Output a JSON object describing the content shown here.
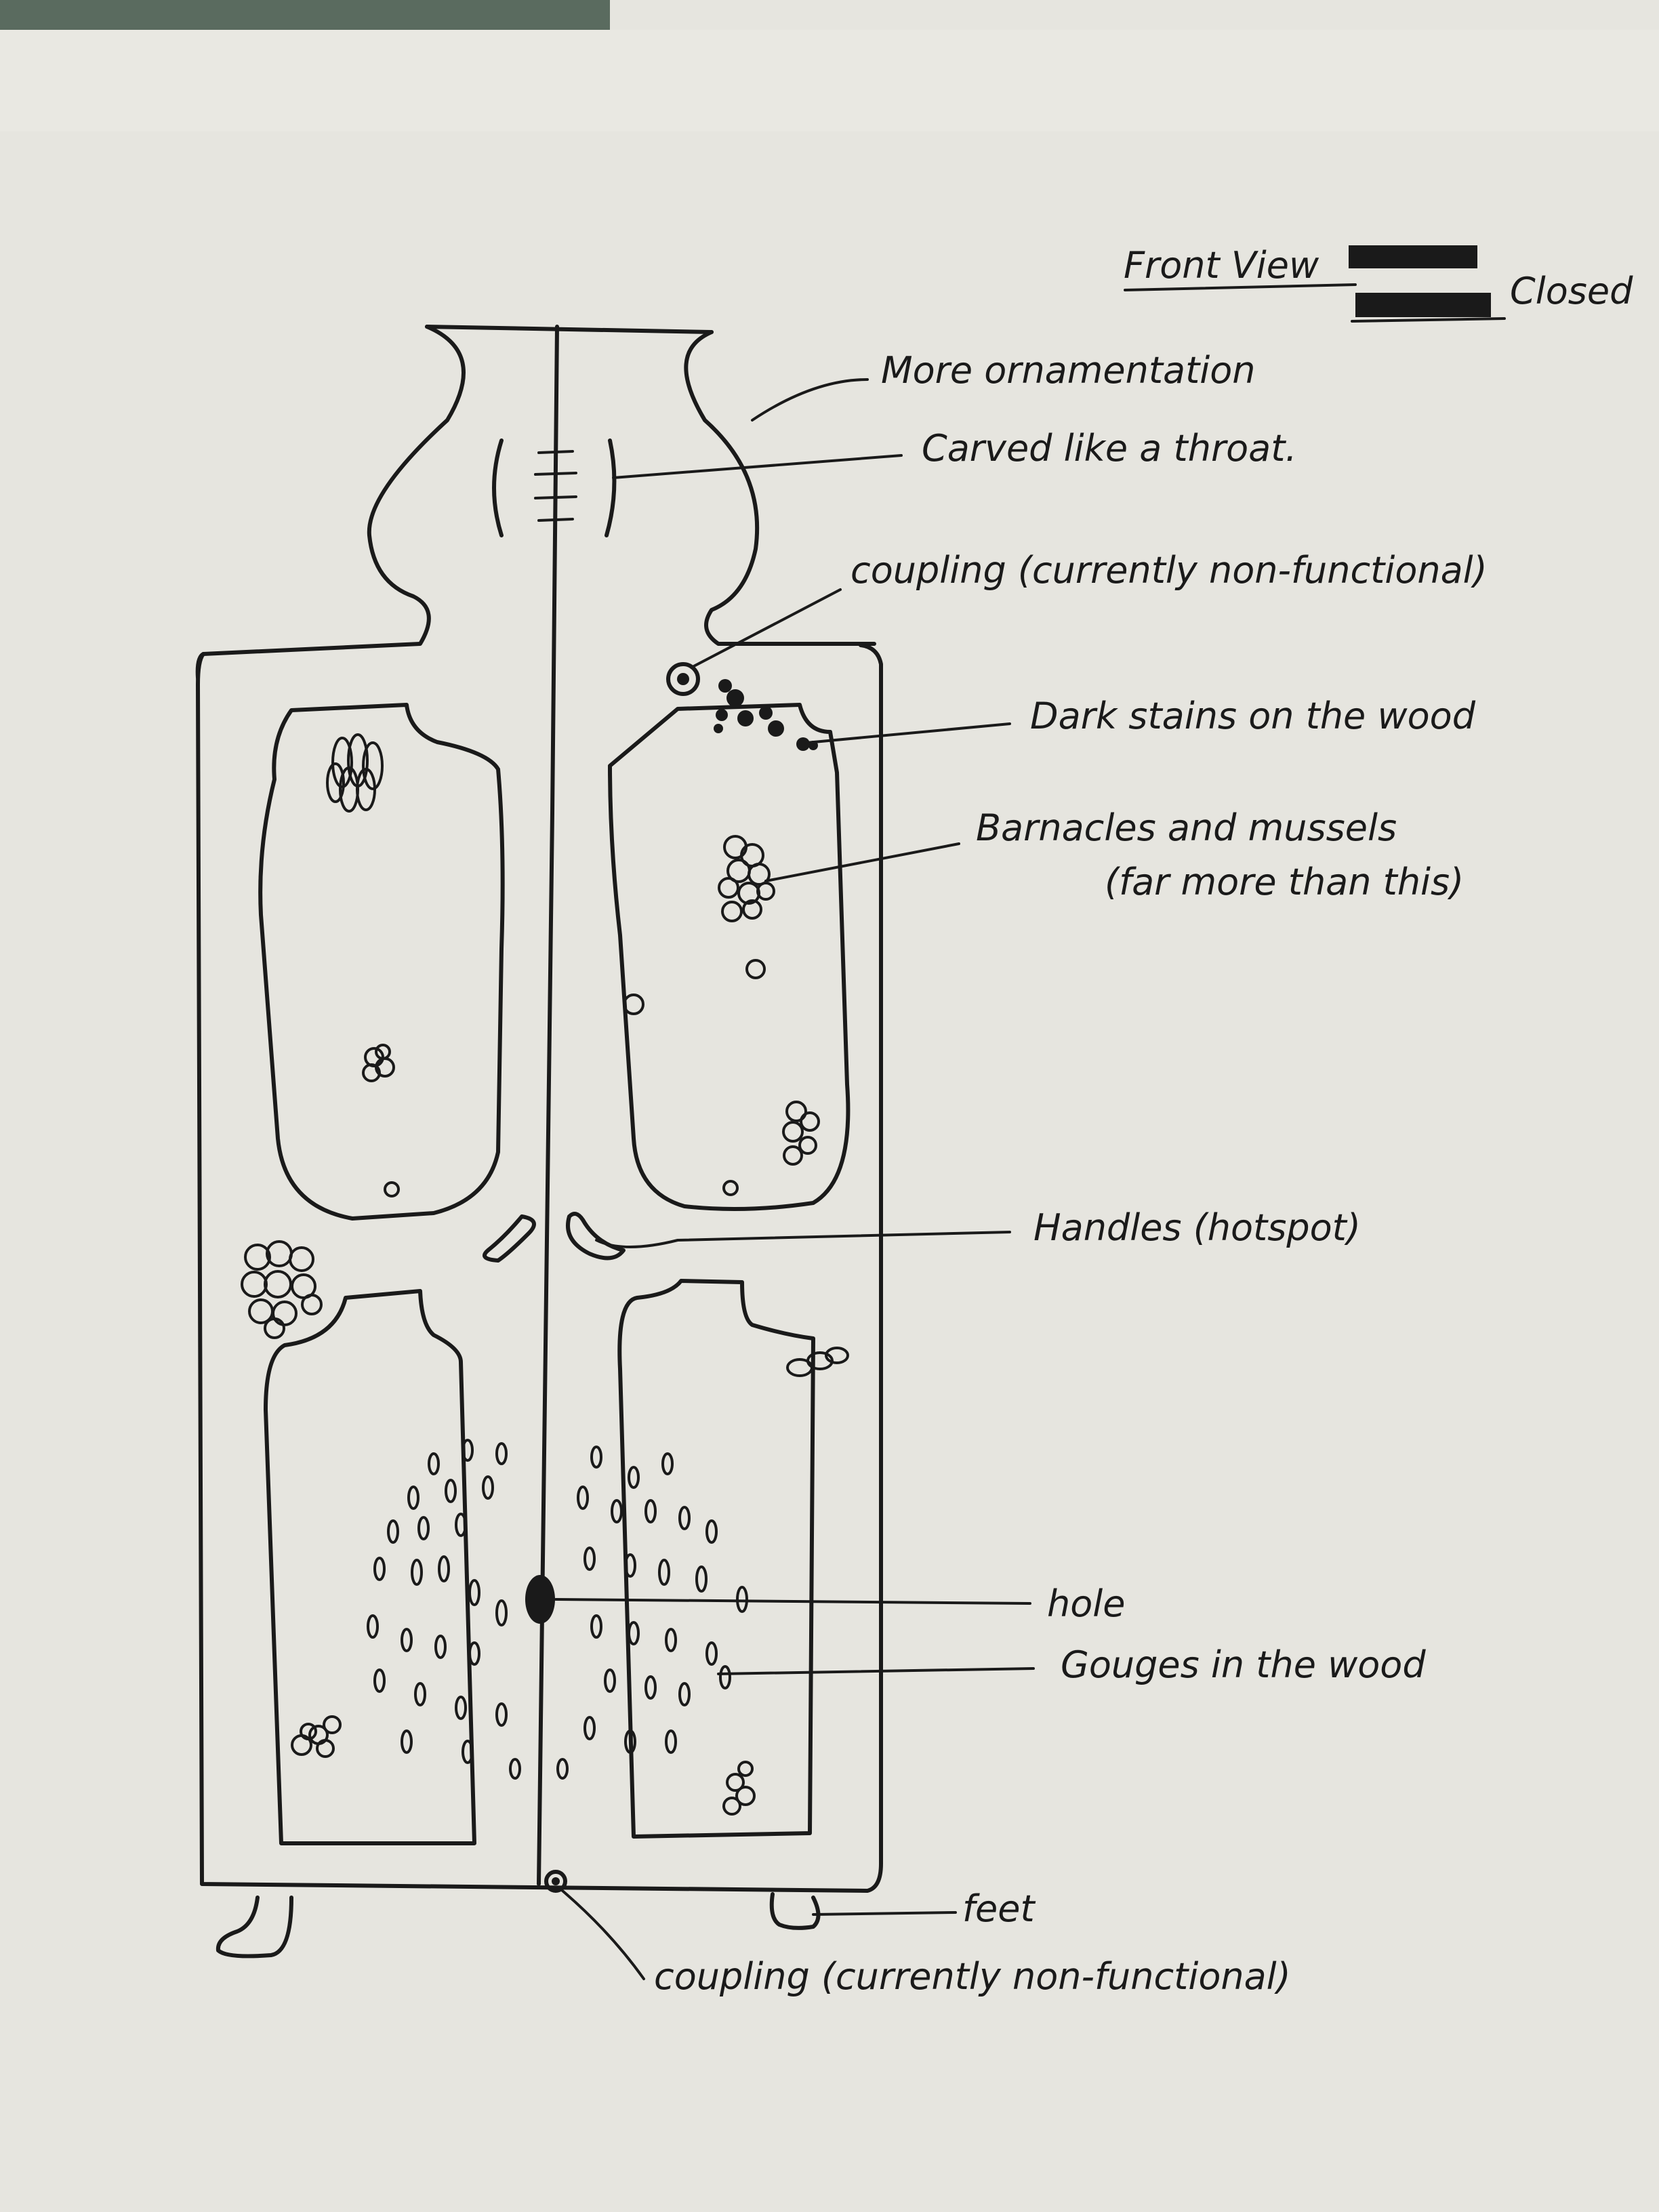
{
  "title": "Front View",
  "state": "Closed",
  "annotations": {
    "ornamentation": "More ornamentation",
    "throat": "Carved like a throat.",
    "coupling_top": "coupling (currently non-functional)",
    "dark_stains": "Dark stains on the wood",
    "barnacles": "Barnacles and mussels",
    "barnacles_note": "(far more than this)",
    "handles": "Handles (hotspot)",
    "hole": "hole",
    "gouges": "Gouges in the wood",
    "feet": "feet",
    "coupling_bottom": "coupling (currently non-functional)"
  },
  "colors": {
    "paper": "#efeee9",
    "ink": "#1a1a1a",
    "backdrop": "#5a6b5f"
  }
}
